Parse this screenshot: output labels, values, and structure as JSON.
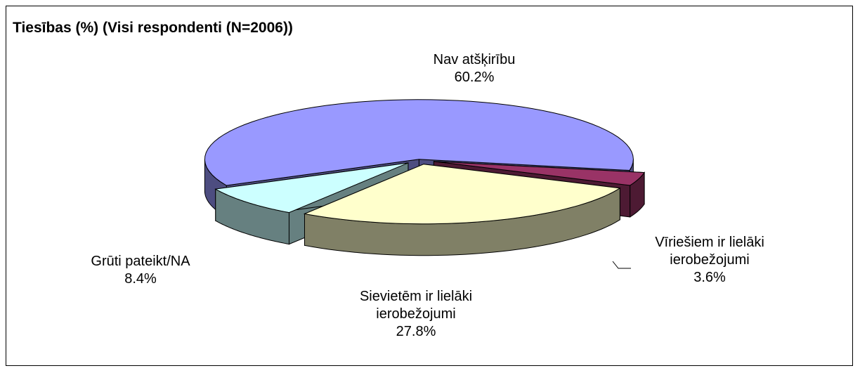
{
  "chart_data": {
    "type": "pie",
    "title": "Tiesības (%) (Visi respondenti (N=2006))",
    "categories": [
      "Nav atšķirību",
      "Vīriešiem ir lielāki ierobežojumi",
      "Sievietēm ir lielāki ierobežojumi",
      "Grūti pateikt/NA"
    ],
    "values": [
      60.2,
      3.6,
      27.8,
      8.4
    ],
    "value_labels": [
      "60.2%",
      "3.6%",
      "27.8%",
      "8.4%"
    ],
    "colors": [
      "#9999ff",
      "#993366",
      "#ffffcc",
      "#ccffff"
    ]
  }
}
